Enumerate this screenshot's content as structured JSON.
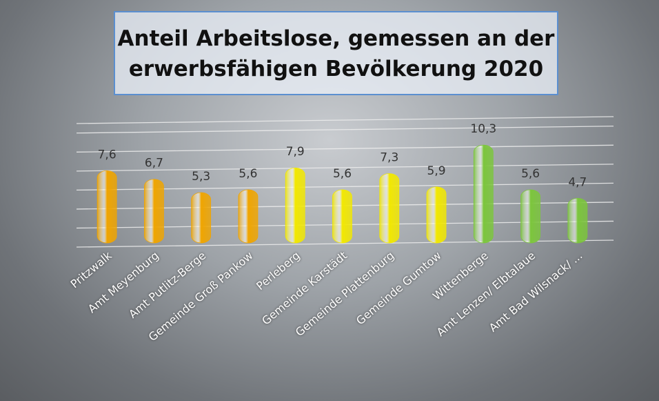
{
  "chart_data": {
    "type": "bar",
    "title": "Anteil Arbeitslose, gemessen an der erwerbsfähigen Bevölkerung 2020",
    "categories": [
      "Pritzwalk",
      "Amt Meyenburg",
      "Amt Putlitz-Berge",
      "Gemeinde Groß Pankow",
      "Perleberg",
      "Gemeinde Karstädt",
      "Gemeinde Plattenburg",
      "Gemeinde Gumtow",
      "Wittenberge",
      "Amt Lenzen/ Elbtalaue",
      "Amt Bad Wilsnack/ ..."
    ],
    "values": [
      7.6,
      6.7,
      5.3,
      5.6,
      7.9,
      5.6,
      7.3,
      5.9,
      10.3,
      5.6,
      4.7
    ],
    "value_labels": [
      "7,6",
      "6,7",
      "5,3",
      "5,6",
      "7,9",
      "5,6",
      "7,3",
      "5,9",
      "10,3",
      "5,6",
      "4,7"
    ],
    "colors": [
      "#f0a500",
      "#f0a500",
      "#f0a500",
      "#f0a500",
      "#f2e800",
      "#f2e800",
      "#f2e800",
      "#f2e800",
      "#7cc63c",
      "#7cc63c",
      "#7cc63c"
    ],
    "ylim": [
      0,
      13
    ],
    "yticks": [
      0,
      2,
      4,
      6,
      8,
      10,
      12,
      13
    ],
    "grid": true
  }
}
